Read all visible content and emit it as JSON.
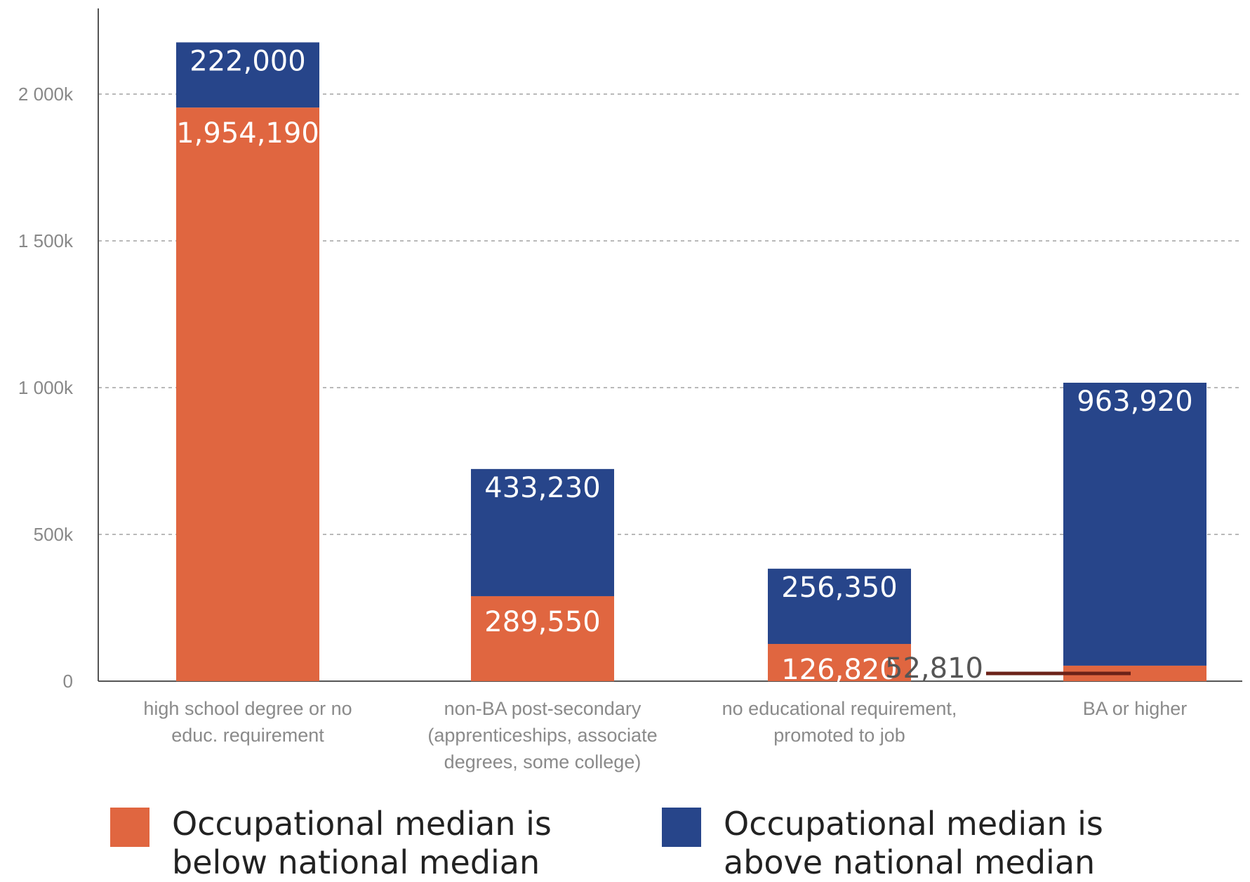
{
  "colors": {
    "below": "#e06640",
    "above": "#27458a",
    "marker": "#6b2218"
  },
  "legend": {
    "below_line1": "Occupational median is",
    "below_line2": "below national median",
    "above_line1": "Occupational median is",
    "above_line2": "above national median"
  },
  "chart_data": {
    "type": "bar",
    "stacked": true,
    "categories": [
      [
        "high school degree or no",
        "educ. requirement"
      ],
      [
        "non-BA post-secondary",
        "(apprenticeships, associate",
        "degrees, some college)"
      ],
      [
        "no educational requirement,",
        "promoted to job"
      ],
      [
        "BA or higher"
      ]
    ],
    "series": [
      {
        "name": "Occupational median is below national median",
        "color": "#e06640",
        "values": [
          1954190,
          289550,
          126820,
          52810
        ],
        "labels": [
          "1,954,190",
          "289,550",
          "126,820",
          "52,810"
        ]
      },
      {
        "name": "Occupational median is above national median",
        "color": "#27458a",
        "values": [
          222000,
          433230,
          256350,
          963920
        ],
        "labels": [
          "222,000",
          "433,230",
          "256,350",
          "963,920"
        ]
      }
    ],
    "yticks": [
      0,
      500000,
      1000000,
      1500000,
      2000000
    ],
    "ytick_labels": [
      "0",
      "500k",
      "1 000k",
      "1 500k",
      "2 000k"
    ],
    "ylim": [
      0,
      2300000
    ],
    "grid": true,
    "legend_position": "bottom",
    "title": "",
    "xlabel": "",
    "ylabel": ""
  }
}
